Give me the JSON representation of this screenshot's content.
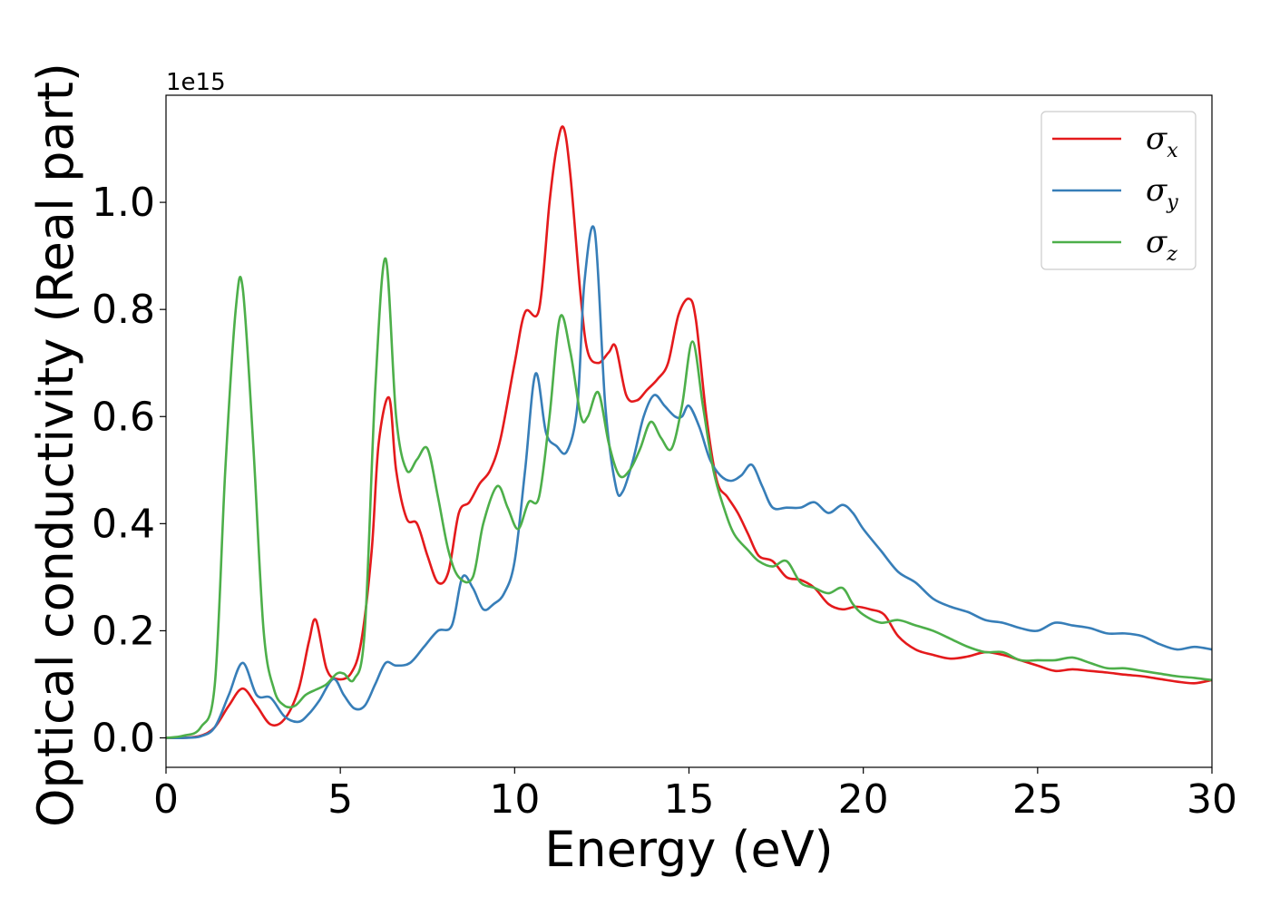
{
  "chart_data": {
    "type": "line",
    "title": "",
    "xlabel": "Energy (eV)",
    "ylabel": "Optical conductivity (Real part)",
    "y_offset_text": "1e15",
    "y_multiplier": 1000000000000000.0,
    "xlim": [
      0,
      30
    ],
    "ylim": [
      -0.055,
      1.2
    ],
    "x_ticks": [
      0,
      5,
      10,
      15,
      20,
      25,
      30
    ],
    "x_tick_labels": [
      "0",
      "5",
      "10",
      "15",
      "20",
      "25",
      "30"
    ],
    "y_ticks": [
      0.0,
      0.2,
      0.4,
      0.6,
      0.8,
      1.0
    ],
    "y_tick_labels": [
      "0.0",
      "0.2",
      "0.4",
      "0.6",
      "0.8",
      "1.0"
    ],
    "grid": false,
    "legend_position": "top-right",
    "series": [
      {
        "name": "σx",
        "legend_symbol": "σ",
        "legend_subscript": "x",
        "color": "#e41a1c",
        "x": [
          0,
          0.5,
          1,
          1.4,
          1.8,
          2.2,
          2.6,
          3.0,
          3.4,
          3.8,
          4.1,
          4.3,
          4.6,
          4.9,
          5.3,
          5.6,
          5.9,
          6.1,
          6.4,
          6.6,
          6.9,
          7.2,
          7.5,
          7.8,
          8.1,
          8.4,
          8.7,
          9.0,
          9.3,
          9.6,
          10.0,
          10.3,
          10.7,
          11.0,
          11.2,
          11.4,
          11.6,
          11.9,
          12.1,
          12.4,
          12.7,
          12.9,
          13.2,
          13.5,
          13.8,
          14.1,
          14.4,
          14.7,
          15.0,
          15.2,
          15.5,
          15.8,
          16.1,
          16.4,
          16.7,
          17.0,
          17.4,
          17.8,
          18.2,
          18.6,
          19.0,
          19.4,
          19.8,
          20.2,
          20.6,
          21.0,
          21.5,
          22.0,
          22.5,
          23.0,
          23.5,
          24.0,
          24.5,
          25.0,
          25.5,
          26.0,
          26.5,
          27.0,
          27.5,
          28.0,
          28.5,
          29.0,
          29.5,
          30.0
        ],
        "y": [
          0.0,
          0.0,
          0.004,
          0.02,
          0.06,
          0.092,
          0.06,
          0.025,
          0.035,
          0.09,
          0.18,
          0.22,
          0.13,
          0.11,
          0.12,
          0.18,
          0.35,
          0.55,
          0.635,
          0.5,
          0.41,
          0.4,
          0.34,
          0.29,
          0.31,
          0.42,
          0.44,
          0.475,
          0.5,
          0.56,
          0.7,
          0.795,
          0.8,
          1.0,
          1.1,
          1.14,
          1.05,
          0.82,
          0.72,
          0.7,
          0.72,
          0.73,
          0.64,
          0.63,
          0.65,
          0.67,
          0.7,
          0.79,
          0.82,
          0.78,
          0.6,
          0.48,
          0.45,
          0.42,
          0.38,
          0.34,
          0.33,
          0.3,
          0.295,
          0.28,
          0.25,
          0.24,
          0.245,
          0.24,
          0.23,
          0.19,
          0.165,
          0.155,
          0.148,
          0.152,
          0.16,
          0.155,
          0.145,
          0.135,
          0.125,
          0.128,
          0.125,
          0.122,
          0.118,
          0.115,
          0.11,
          0.105,
          0.102,
          0.108
        ]
      },
      {
        "name": "σy",
        "legend_symbol": "σ",
        "legend_subscript": "y",
        "color": "#377eb8",
        "x": [
          0,
          0.5,
          1,
          1.4,
          1.8,
          2.2,
          2.6,
          3.0,
          3.4,
          3.8,
          4.1,
          4.4,
          4.8,
          5.1,
          5.4,
          5.7,
          6.0,
          6.3,
          6.6,
          7.0,
          7.4,
          7.8,
          8.2,
          8.5,
          8.8,
          9.1,
          9.4,
          9.7,
          10.0,
          10.3,
          10.6,
          10.9,
          11.2,
          11.5,
          11.8,
          12.0,
          12.3,
          12.6,
          12.9,
          13.1,
          13.4,
          13.7,
          14.0,
          14.3,
          14.6,
          14.8,
          15.0,
          15.3,
          15.6,
          15.9,
          16.2,
          16.5,
          16.8,
          17.1,
          17.4,
          17.8,
          18.2,
          18.6,
          19.0,
          19.4,
          19.7,
          20.0,
          20.5,
          21.0,
          21.5,
          22.0,
          22.5,
          23.0,
          23.5,
          24.0,
          24.5,
          25.0,
          25.5,
          26.0,
          26.5,
          27.0,
          27.5,
          28.0,
          28.5,
          29.0,
          29.5,
          30.0
        ],
        "y": [
          0.0,
          0.0,
          0.003,
          0.02,
          0.08,
          0.14,
          0.08,
          0.075,
          0.04,
          0.03,
          0.045,
          0.07,
          0.11,
          0.08,
          0.055,
          0.06,
          0.1,
          0.14,
          0.135,
          0.14,
          0.17,
          0.2,
          0.21,
          0.3,
          0.28,
          0.24,
          0.25,
          0.27,
          0.33,
          0.5,
          0.68,
          0.57,
          0.545,
          0.535,
          0.62,
          0.85,
          0.945,
          0.62,
          0.47,
          0.46,
          0.52,
          0.6,
          0.64,
          0.62,
          0.6,
          0.6,
          0.62,
          0.58,
          0.52,
          0.49,
          0.48,
          0.49,
          0.51,
          0.47,
          0.43,
          0.43,
          0.43,
          0.44,
          0.42,
          0.435,
          0.42,
          0.39,
          0.35,
          0.31,
          0.29,
          0.26,
          0.245,
          0.235,
          0.22,
          0.215,
          0.205,
          0.2,
          0.215,
          0.21,
          0.205,
          0.195,
          0.195,
          0.19,
          0.175,
          0.165,
          0.17,
          0.165
        ]
      },
      {
        "name": "σz",
        "legend_symbol": "σ",
        "legend_subscript": "z",
        "color": "#4daf4a",
        "x": [
          0,
          0.5,
          1,
          1.4,
          1.7,
          2.0,
          2.2,
          2.5,
          2.8,
          3.1,
          3.4,
          3.7,
          4.0,
          4.3,
          4.6,
          4.9,
          5.1,
          5.4,
          5.7,
          6.0,
          6.3,
          6.6,
          6.9,
          7.2,
          7.5,
          7.8,
          8.1,
          8.4,
          8.8,
          9.1,
          9.5,
          9.8,
          10.1,
          10.4,
          10.7,
          11.0,
          11.3,
          11.6,
          11.9,
          12.1,
          12.4,
          12.7,
          13.0,
          13.3,
          13.6,
          13.9,
          14.2,
          14.5,
          14.8,
          15.1,
          15.4,
          15.7,
          16.0,
          16.3,
          16.7,
          17.0,
          17.4,
          17.8,
          18.2,
          18.6,
          19.0,
          19.4,
          19.7,
          20.0,
          20.5,
          21.0,
          21.5,
          22.0,
          22.5,
          23.0,
          23.5,
          24.0,
          24.5,
          25.0,
          25.5,
          26.0,
          26.5,
          27.0,
          27.5,
          28.0,
          28.5,
          29.0,
          29.5,
          30.0
        ],
        "y": [
          0.0,
          0.004,
          0.02,
          0.1,
          0.5,
          0.8,
          0.84,
          0.55,
          0.2,
          0.09,
          0.06,
          0.06,
          0.08,
          0.09,
          0.1,
          0.12,
          0.12,
          0.11,
          0.2,
          0.65,
          0.895,
          0.6,
          0.5,
          0.52,
          0.54,
          0.45,
          0.35,
          0.3,
          0.3,
          0.4,
          0.47,
          0.43,
          0.39,
          0.44,
          0.45,
          0.6,
          0.785,
          0.72,
          0.6,
          0.6,
          0.645,
          0.55,
          0.49,
          0.5,
          0.54,
          0.59,
          0.56,
          0.54,
          0.62,
          0.74,
          0.62,
          0.5,
          0.43,
          0.38,
          0.35,
          0.33,
          0.32,
          0.33,
          0.29,
          0.28,
          0.27,
          0.28,
          0.25,
          0.23,
          0.215,
          0.22,
          0.21,
          0.2,
          0.185,
          0.17,
          0.16,
          0.16,
          0.145,
          0.145,
          0.145,
          0.15,
          0.14,
          0.13,
          0.13,
          0.125,
          0.12,
          0.115,
          0.112,
          0.108
        ]
      }
    ]
  }
}
